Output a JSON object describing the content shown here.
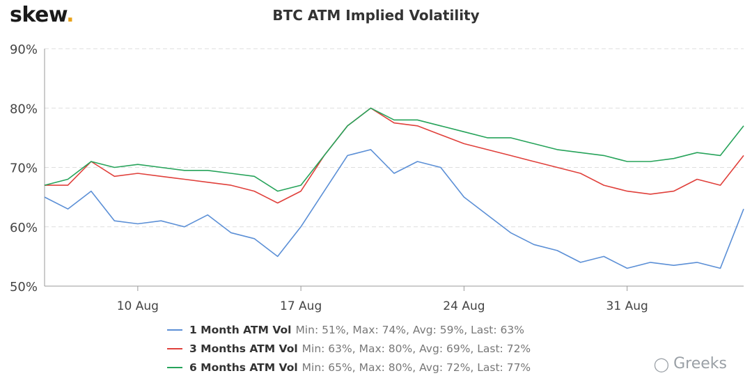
{
  "brand": {
    "name": "skew",
    "dot": "."
  },
  "watermark": {
    "icon": "wechat-icon",
    "text": "Greeks"
  },
  "colors": {
    "one_month": "#5b8fd6",
    "three_months": "#e0403b",
    "six_months": "#26a35a",
    "grid": "#dddddd",
    "axis_text": "#444444"
  },
  "legend": [
    {
      "name": "1 Month ATM Vol",
      "stats": "Min: 51%, Max: 74%, Avg: 59%, Last: 63%"
    },
    {
      "name": "3 Months ATM Vol",
      "stats": "Min: 63%, Max: 80%, Avg: 69%, Last: 72%"
    },
    {
      "name": "6 Months ATM Vol",
      "stats": "Min: 65%, Max: 80%, Avg: 72%, Last: 77%"
    }
  ],
  "chart_data": {
    "type": "line",
    "title": "BTC ATM Implied Volatility",
    "xlabel": "",
    "ylabel": "",
    "x_range": [
      "2020-08-06",
      "2020-09-05"
    ],
    "x_ticks": [
      {
        "date": "2020-08-10",
        "label": "10 Aug"
      },
      {
        "date": "2020-08-17",
        "label": "17 Aug"
      },
      {
        "date": "2020-08-24",
        "label": "24 Aug"
      },
      {
        "date": "2020-08-31",
        "label": "31 Aug"
      }
    ],
    "ylim": [
      50,
      90
    ],
    "y_ticks": [
      50,
      60,
      70,
      80,
      90
    ],
    "y_tick_labels": [
      "50%",
      "60%",
      "70%",
      "80%",
      "90%"
    ],
    "grid": true,
    "legend_position": "bottom",
    "series": [
      {
        "name": "1 Month ATM Vol",
        "color": "#5b8fd6",
        "points": [
          [
            "2020-08-06",
            65
          ],
          [
            "2020-08-07",
            63
          ],
          [
            "2020-08-08",
            66
          ],
          [
            "2020-08-09",
            61
          ],
          [
            "2020-08-10",
            60.5
          ],
          [
            "2020-08-11",
            61
          ],
          [
            "2020-08-12",
            60
          ],
          [
            "2020-08-13",
            62
          ],
          [
            "2020-08-14",
            59
          ],
          [
            "2020-08-15",
            58
          ],
          [
            "2020-08-16",
            55
          ],
          [
            "2020-08-17",
            60
          ],
          [
            "2020-08-18",
            66
          ],
          [
            "2020-08-19",
            72
          ],
          [
            "2020-08-20",
            73
          ],
          [
            "2020-08-21",
            69
          ],
          [
            "2020-08-22",
            71
          ],
          [
            "2020-08-23",
            70
          ],
          [
            "2020-08-24",
            65
          ],
          [
            "2020-08-25",
            62
          ],
          [
            "2020-08-26",
            59
          ],
          [
            "2020-08-27",
            57
          ],
          [
            "2020-08-28",
            56
          ],
          [
            "2020-08-29",
            54
          ],
          [
            "2020-08-30",
            55
          ],
          [
            "2020-08-31",
            53
          ],
          [
            "2020-09-01",
            54
          ],
          [
            "2020-09-02",
            53.5
          ],
          [
            "2020-09-03",
            54
          ],
          [
            "2020-09-04",
            53
          ],
          [
            "2020-09-05",
            63
          ]
        ]
      },
      {
        "name": "3 Months ATM Vol",
        "color": "#e0403b",
        "points": [
          [
            "2020-08-06",
            67
          ],
          [
            "2020-08-07",
            67
          ],
          [
            "2020-08-08",
            71
          ],
          [
            "2020-08-09",
            68.5
          ],
          [
            "2020-08-10",
            69
          ],
          [
            "2020-08-11",
            68.5
          ],
          [
            "2020-08-12",
            68
          ],
          [
            "2020-08-13",
            67.5
          ],
          [
            "2020-08-14",
            67
          ],
          [
            "2020-08-15",
            66
          ],
          [
            "2020-08-16",
            64
          ],
          [
            "2020-08-17",
            66
          ],
          [
            "2020-08-18",
            72
          ],
          [
            "2020-08-19",
            77
          ],
          [
            "2020-08-20",
            80
          ],
          [
            "2020-08-21",
            77.5
          ],
          [
            "2020-08-22",
            77
          ],
          [
            "2020-08-23",
            75.5
          ],
          [
            "2020-08-24",
            74
          ],
          [
            "2020-08-25",
            73
          ],
          [
            "2020-08-26",
            72
          ],
          [
            "2020-08-27",
            71
          ],
          [
            "2020-08-28",
            70
          ],
          [
            "2020-08-29",
            69
          ],
          [
            "2020-08-30",
            67
          ],
          [
            "2020-08-31",
            66
          ],
          [
            "2020-09-01",
            65.5
          ],
          [
            "2020-09-02",
            66
          ],
          [
            "2020-09-03",
            68
          ],
          [
            "2020-09-04",
            67
          ],
          [
            "2020-09-05",
            72
          ]
        ]
      },
      {
        "name": "6 Months ATM Vol",
        "color": "#26a35a",
        "points": [
          [
            "2020-08-06",
            67
          ],
          [
            "2020-08-07",
            68
          ],
          [
            "2020-08-08",
            71
          ],
          [
            "2020-08-09",
            70
          ],
          [
            "2020-08-10",
            70.5
          ],
          [
            "2020-08-11",
            70
          ],
          [
            "2020-08-12",
            69.5
          ],
          [
            "2020-08-13",
            69.5
          ],
          [
            "2020-08-14",
            69
          ],
          [
            "2020-08-15",
            68.5
          ],
          [
            "2020-08-16",
            66
          ],
          [
            "2020-08-17",
            67
          ],
          [
            "2020-08-18",
            72
          ],
          [
            "2020-08-19",
            77
          ],
          [
            "2020-08-20",
            80
          ],
          [
            "2020-08-21",
            78
          ],
          [
            "2020-08-22",
            78
          ],
          [
            "2020-08-23",
            77
          ],
          [
            "2020-08-24",
            76
          ],
          [
            "2020-08-25",
            75
          ],
          [
            "2020-08-26",
            75
          ],
          [
            "2020-08-27",
            74
          ],
          [
            "2020-08-28",
            73
          ],
          [
            "2020-08-29",
            72.5
          ],
          [
            "2020-08-30",
            72
          ],
          [
            "2020-08-31",
            71
          ],
          [
            "2020-09-01",
            71
          ],
          [
            "2020-09-02",
            71.5
          ],
          [
            "2020-09-03",
            72.5
          ],
          [
            "2020-09-04",
            72
          ],
          [
            "2020-09-05",
            77
          ]
        ]
      }
    ]
  }
}
